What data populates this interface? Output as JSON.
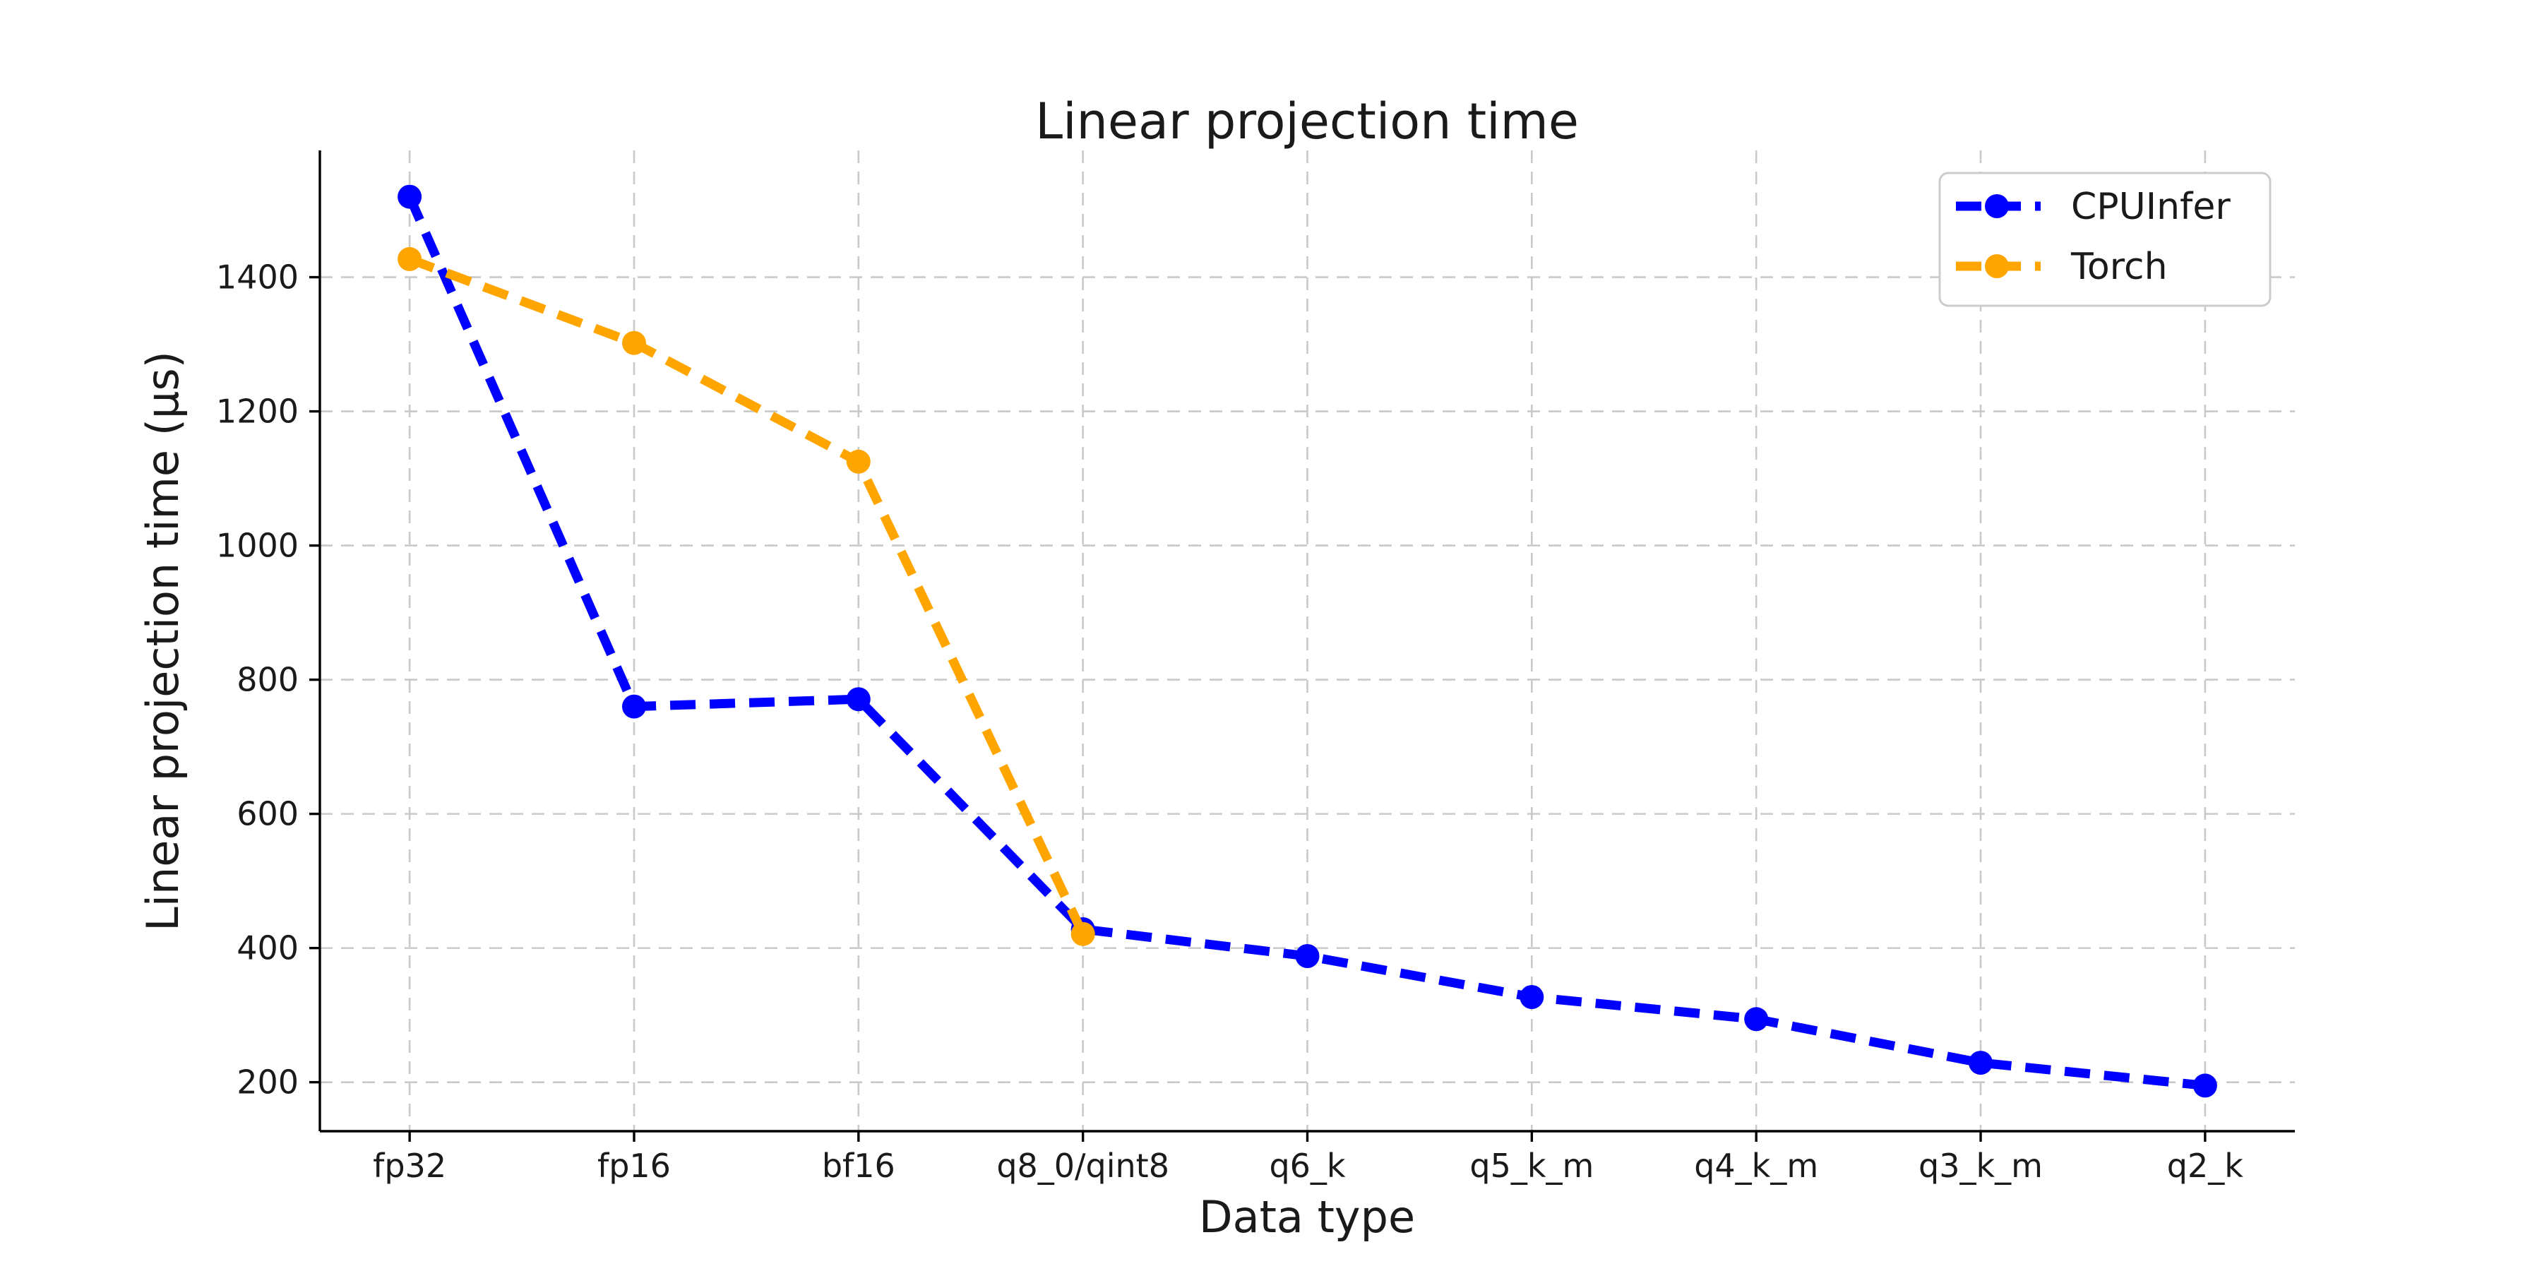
{
  "figure": {
    "title": "Linear projection time",
    "xlabel": "Data type",
    "ylabel": "Linear projection time (μs)"
  },
  "legend": {
    "position": "upper right",
    "items": [
      {
        "label": "CPUInfer",
        "color": "#0000ff"
      },
      {
        "label": "Torch",
        "color": "#ffa500"
      }
    ]
  },
  "colors": {
    "grid": "#c9c9c9",
    "spine": "#000000",
    "text": "#1a1a1a",
    "legend_border": "#cccccc",
    "background": "#ffffff"
  },
  "chart_data": {
    "type": "line",
    "title": "Linear projection time",
    "xlabel": "Data type",
    "ylabel": "Linear projection time (μs)",
    "categories": [
      "fp32",
      "fp16",
      "bf16",
      "q8_0/qint8",
      "q6_k",
      "q5_k_m",
      "q4_k_m",
      "q3_k_m",
      "q2_k"
    ],
    "series": [
      {
        "name": "CPUInfer",
        "color": "#0000ff",
        "linestyle": "dashed",
        "marker": "circle",
        "values": [
          1520,
          760,
          771,
          428,
          388,
          327,
          294,
          229,
          195
        ]
      },
      {
        "name": "Torch",
        "color": "#ffa500",
        "linestyle": "dashed",
        "marker": "circle",
        "values": [
          1427,
          1302,
          1125,
          421,
          null,
          null,
          null,
          null,
          null
        ]
      }
    ],
    "yticks": [
      200,
      400,
      600,
      800,
      1000,
      1200,
      1400
    ],
    "ylim": [
      127,
      1589
    ],
    "grid": true,
    "grid_style": "dashed",
    "legend_position": "upper right"
  }
}
